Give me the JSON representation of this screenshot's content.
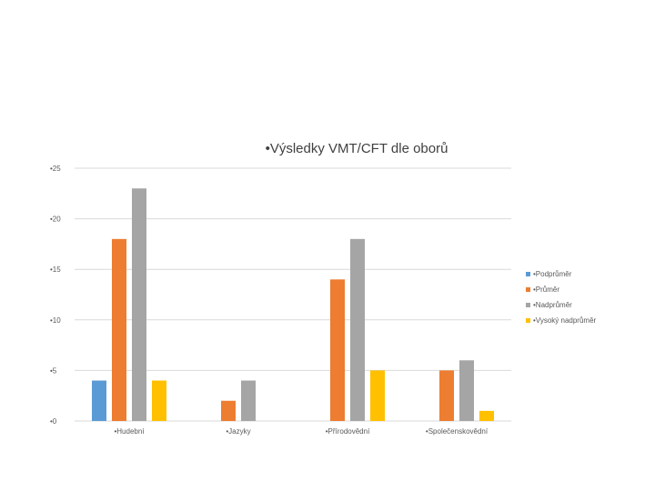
{
  "chart_data": {
    "type": "bar",
    "title": "•Výsledky VMT/CFT dle oborů",
    "categories": [
      "•Hudební",
      "•Jazyky",
      "•Přírodovědní",
      "•Společenskovědní"
    ],
    "series": [
      {
        "name": "•Podprůměr",
        "color": "#5b9bd5",
        "values": [
          4,
          0,
          0,
          0
        ]
      },
      {
        "name": "•Průměr",
        "color": "#ed7d31",
        "values": [
          18,
          2,
          14,
          5
        ]
      },
      {
        "name": "•Nadprůměr",
        "color": "#a5a5a5",
        "values": [
          23,
          4,
          18,
          6
        ]
      },
      {
        "name": "•Vysoký nadprůměr",
        "color": "#ffc000",
        "values": [
          4,
          0,
          5,
          1
        ]
      }
    ],
    "yticks": [
      "•0",
      "•5",
      "•10",
      "•15",
      "•20",
      "•25"
    ],
    "ylim": [
      0,
      25
    ],
    "grid": true,
    "legend": "right"
  }
}
